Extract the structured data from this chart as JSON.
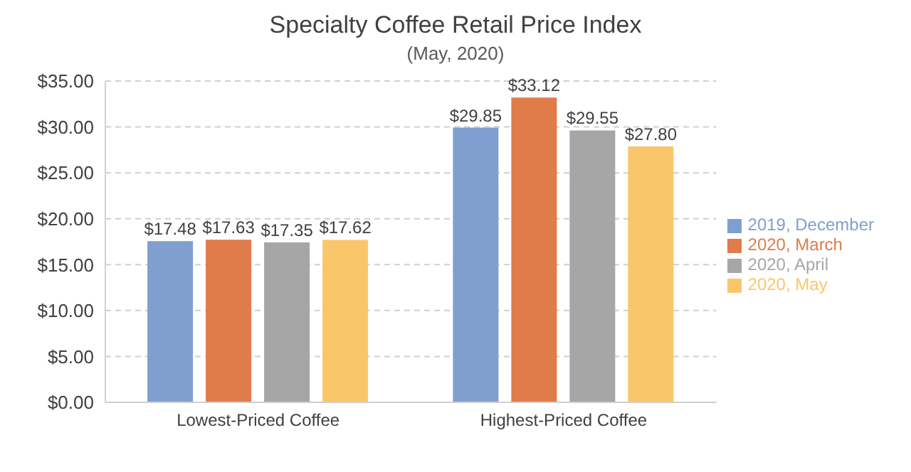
{
  "chart_data": {
    "type": "bar",
    "title": "Specialty Coffee Retail Price Index",
    "subtitle": "(May, 2020)",
    "categories": [
      "Lowest-Priced Coffee",
      "Highest-Priced Coffee"
    ],
    "series": [
      {
        "name": "2019, December",
        "color": "#7f9fd0",
        "values": [
          17.48,
          29.85
        ],
        "value_labels": [
          "$17.48",
          "$29.85"
        ]
      },
      {
        "name": "2020, March",
        "color": "#e07b4a",
        "values": [
          17.63,
          33.12
        ],
        "value_labels": [
          "$17.63",
          "$33.12"
        ]
      },
      {
        "name": "2020, April",
        "color": "#a6a6a6",
        "values": [
          17.35,
          29.55
        ],
        "value_labels": [
          "$17.35",
          "$29.55"
        ]
      },
      {
        "name": "2020, May",
        "color": "#f9c76a",
        "values": [
          17.62,
          27.8
        ],
        "value_labels": [
          "$17.62",
          "$27.80"
        ]
      }
    ],
    "ylim": [
      0,
      35
    ],
    "yticks": [
      {
        "value": 0,
        "label": "$0.00"
      },
      {
        "value": 5,
        "label": "$5.00"
      },
      {
        "value": 10,
        "label": "$10.00"
      },
      {
        "value": 15,
        "label": "$15.00"
      },
      {
        "value": 20,
        "label": "$20.00"
      },
      {
        "value": 25,
        "label": "$25.00"
      },
      {
        "value": 30,
        "label": "$30.00"
      },
      {
        "value": 35,
        "label": "$35.00"
      }
    ],
    "grid": "y",
    "legend": "right"
  }
}
